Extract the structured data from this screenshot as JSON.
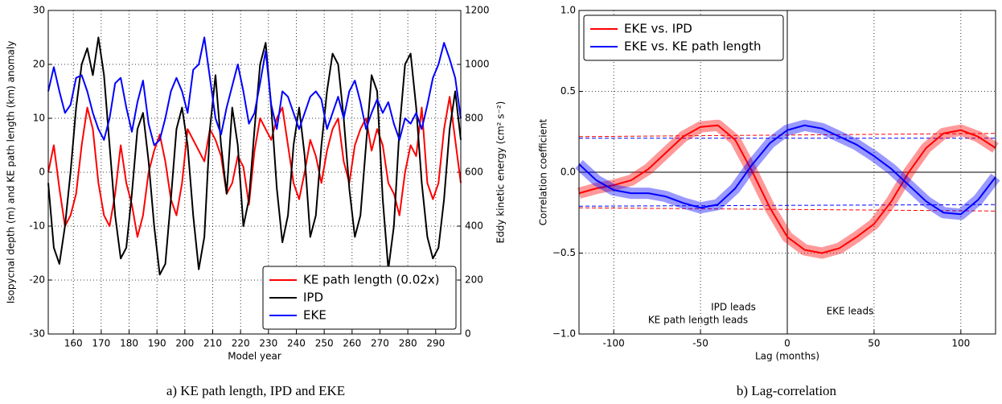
{
  "chart_data": [
    {
      "type": "line",
      "caption": "a) KE path length, IPD and EKE",
      "xlabel": "Model year",
      "ylabel": "Isopycnal depth (m) and KE path length (km) anomaly",
      "y2label": "Eddy kinetic energy (cm² s⁻²)",
      "xlim": [
        151,
        299
      ],
      "xticks": [
        160,
        170,
        180,
        190,
        200,
        210,
        220,
        230,
        240,
        250,
        260,
        270,
        280,
        290
      ],
      "ylim": [
        -30,
        30
      ],
      "yticks": [
        -30,
        -20,
        -10,
        0,
        10,
        20,
        30
      ],
      "y2lim": [
        0,
        1200
      ],
      "y2ticks": [
        0,
        200,
        400,
        600,
        800,
        1000,
        1200
      ],
      "y2color": "#0000ff",
      "grid": true,
      "legend": "lower right",
      "x": [
        151,
        153,
        155,
        157,
        159,
        161,
        163,
        165,
        167,
        169,
        171,
        173,
        175,
        177,
        179,
        181,
        183,
        185,
        187,
        189,
        191,
        193,
        195,
        197,
        199,
        201,
        203,
        205,
        207,
        209,
        211,
        213,
        215,
        217,
        219,
        221,
        223,
        225,
        227,
        229,
        231,
        233,
        235,
        237,
        239,
        241,
        243,
        245,
        247,
        249,
        251,
        253,
        255,
        257,
        259,
        261,
        263,
        265,
        267,
        269,
        271,
        273,
        275,
        277,
        279,
        281,
        283,
        285,
        287,
        289,
        291,
        293,
        295,
        297,
        299
      ],
      "series": [
        {
          "name": "KE path length (0.02x)",
          "color": "#ff0000",
          "values": [
            0,
            5,
            -3,
            -10,
            -8,
            -4,
            5,
            12,
            8,
            -2,
            -8,
            -10,
            -4,
            5,
            -2,
            -6,
            -12,
            -8,
            0,
            4,
            7,
            2,
            -5,
            -8,
            -2,
            8,
            6,
            4,
            2,
            8,
            6,
            3,
            -4,
            -2,
            3,
            1,
            -6,
            4,
            10,
            8,
            6,
            10,
            12,
            5,
            -2,
            -5,
            0,
            6,
            3,
            -2,
            4,
            8,
            10,
            2,
            -2,
            5,
            8,
            10,
            4,
            8,
            5,
            -2,
            -4,
            -8,
            0,
            5,
            3,
            12,
            -2,
            -5,
            -2,
            8,
            14,
            6,
            -2
          ]
        },
        {
          "name": "IPD",
          "color": "#000000",
          "values": [
            -2,
            -14,
            -17,
            -10,
            0,
            12,
            20,
            23,
            18,
            25,
            18,
            5,
            -8,
            -16,
            -14,
            -4,
            8,
            11,
            2,
            -10,
            -19,
            -17,
            -5,
            8,
            12,
            5,
            -8,
            -18,
            -12,
            8,
            18,
            5,
            -4,
            12,
            5,
            -10,
            -5,
            8,
            20,
            24,
            12,
            -3,
            -13,
            -8,
            5,
            12,
            3,
            -12,
            -8,
            5,
            15,
            22,
            20,
            10,
            -3,
            -12,
            -8,
            5,
            18,
            15,
            -5,
            -18,
            -10,
            8,
            20,
            22,
            12,
            -2,
            -12,
            -16,
            -14,
            -5,
            8,
            15,
            6
          ]
        },
        {
          "name": "EKE",
          "color": "#0000ff",
          "axis": "y2",
          "values": [
            900,
            990,
            900,
            820,
            850,
            950,
            960,
            900,
            820,
            760,
            720,
            800,
            930,
            950,
            840,
            750,
            860,
            940,
            780,
            700,
            720,
            800,
            900,
            950,
            900,
            820,
            980,
            1000,
            1100,
            950,
            800,
            740,
            840,
            920,
            1000,
            900,
            780,
            820,
            930,
            1050,
            850,
            760,
            900,
            880,
            820,
            760,
            820,
            880,
            900,
            870,
            760,
            820,
            880,
            800,
            900,
            940,
            860,
            760,
            820,
            870,
            820,
            860,
            780,
            720,
            800,
            780,
            820,
            760,
            850,
            950,
            1000,
            1080,
            1020,
            950,
            800
          ]
        }
      ]
    },
    {
      "type": "line",
      "caption": "b) Lag-correlation",
      "xlabel": "Lag (months)",
      "ylabel": "Correlation coefficient",
      "xlim": [
        -120,
        120
      ],
      "xticks": [
        -100,
        -50,
        0,
        50,
        100
      ],
      "ylim": [
        -1,
        1
      ],
      "yticks": [
        {
          "value": -1,
          "label": "−1.0"
        },
        {
          "value": -0.5,
          "label": "−0.5"
        },
        {
          "value": 0,
          "label": "0.0"
        },
        {
          "value": 0.5,
          "label": "0.5"
        },
        {
          "value": 1,
          "label": "1.0"
        }
      ],
      "grid": true,
      "legend": "upper left",
      "annotations": [
        "IPD leads",
        "KE path length leads",
        "EKE leads"
      ],
      "x": [
        -120,
        -110,
        -100,
        -90,
        -80,
        -70,
        -60,
        -50,
        -40,
        -30,
        -20,
        -10,
        0,
        10,
        20,
        30,
        40,
        50,
        60,
        70,
        80,
        90,
        100,
        110,
        120
      ],
      "series": [
        {
          "name": "EKE vs. IPD",
          "color": "#ff0000",
          "values": [
            -0.13,
            -0.1,
            -0.08,
            -0.05,
            0.02,
            0.12,
            0.22,
            0.28,
            0.29,
            0.2,
            0.0,
            -0.22,
            -0.4,
            -0.48,
            -0.5,
            -0.47,
            -0.4,
            -0.32,
            -0.18,
            0.0,
            0.15,
            0.24,
            0.26,
            0.22,
            0.15
          ]
        },
        {
          "name": "EKE vs. KE path length",
          "color": "#0000ff",
          "values": [
            0.05,
            -0.05,
            -0.11,
            -0.13,
            -0.13,
            -0.15,
            -0.19,
            -0.22,
            -0.2,
            -0.1,
            0.05,
            0.18,
            0.26,
            0.29,
            0.27,
            0.22,
            0.17,
            0.1,
            0.02,
            -0.08,
            -0.18,
            -0.25,
            -0.26,
            -0.17,
            -0.03
          ]
        }
      ],
      "significance": [
        {
          "color": "#ff0000",
          "values": [
            0.22,
            0.24
          ]
        },
        {
          "color": "#ff0000",
          "values": [
            -0.22,
            -0.24
          ]
        },
        {
          "color": "#0000ff",
          "values": [
            0.21,
            0.21
          ]
        },
        {
          "color": "#0000ff",
          "values": [
            -0.21,
            -0.2
          ]
        }
      ]
    }
  ]
}
